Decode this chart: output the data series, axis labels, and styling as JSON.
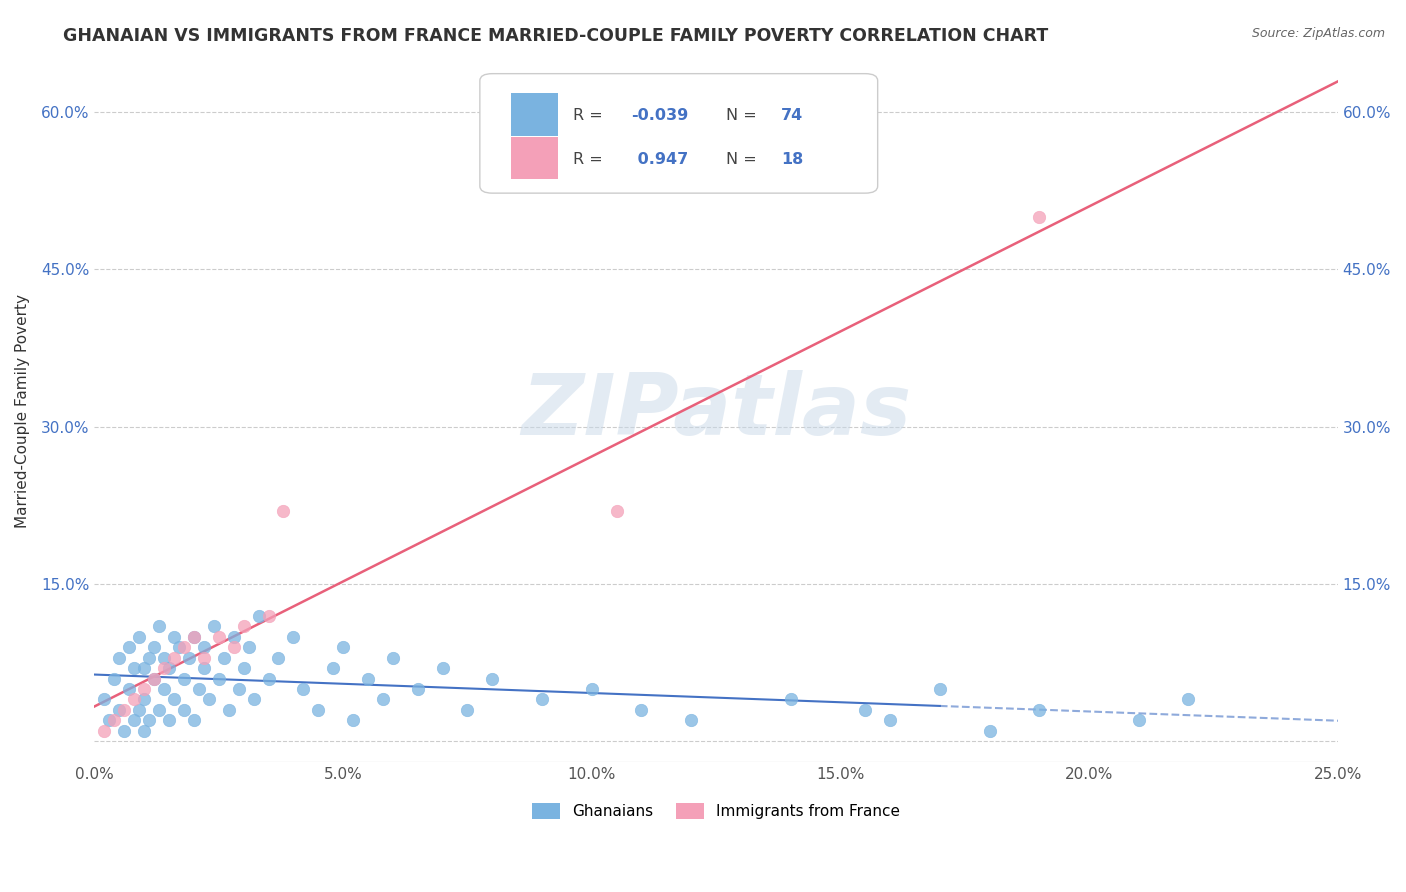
{
  "title": "GHANAIAN VS IMMIGRANTS FROM FRANCE MARRIED-COUPLE FAMILY POVERTY CORRELATION CHART",
  "source": "Source: ZipAtlas.com",
  "ylabel": "Married-Couple Family Poverty",
  "xlim": [
    0.0,
    0.25
  ],
  "ylim": [
    -0.02,
    0.65
  ],
  "xtick_labels": [
    "0.0%",
    "5.0%",
    "10.0%",
    "15.0%",
    "20.0%",
    "25.0%"
  ],
  "xtick_vals": [
    0.0,
    0.05,
    0.1,
    0.15,
    0.2,
    0.25
  ],
  "ytick_labels": [
    "",
    "15.0%",
    "30.0%",
    "45.0%",
    "60.0%"
  ],
  "ytick_vals": [
    0.0,
    0.15,
    0.3,
    0.45,
    0.6
  ],
  "ghanaian_color": "#7ab3e0",
  "france_color": "#f4a0b8",
  "ghanaian_line_color": "#4472c4",
  "france_line_color": "#e8607a",
  "legend_label1": "Ghanaians",
  "legend_label2": "Immigrants from France",
  "ghanaian_x": [
    0.002,
    0.003,
    0.004,
    0.005,
    0.005,
    0.006,
    0.007,
    0.007,
    0.008,
    0.008,
    0.009,
    0.009,
    0.01,
    0.01,
    0.01,
    0.011,
    0.011,
    0.012,
    0.012,
    0.013,
    0.013,
    0.014,
    0.014,
    0.015,
    0.015,
    0.016,
    0.016,
    0.017,
    0.018,
    0.018,
    0.019,
    0.02,
    0.02,
    0.021,
    0.022,
    0.022,
    0.023,
    0.024,
    0.025,
    0.026,
    0.027,
    0.028,
    0.029,
    0.03,
    0.031,
    0.032,
    0.033,
    0.035,
    0.037,
    0.04,
    0.042,
    0.045,
    0.048,
    0.05,
    0.052,
    0.055,
    0.058,
    0.06,
    0.065,
    0.07,
    0.075,
    0.08,
    0.09,
    0.1,
    0.11,
    0.12,
    0.14,
    0.155,
    0.16,
    0.17,
    0.18,
    0.19,
    0.21,
    0.22
  ],
  "ghanaian_y": [
    0.04,
    0.02,
    0.06,
    0.03,
    0.08,
    0.01,
    0.05,
    0.09,
    0.02,
    0.07,
    0.03,
    0.1,
    0.04,
    0.07,
    0.01,
    0.08,
    0.02,
    0.06,
    0.09,
    0.03,
    0.11,
    0.05,
    0.08,
    0.02,
    0.07,
    0.1,
    0.04,
    0.09,
    0.03,
    0.06,
    0.08,
    0.02,
    0.1,
    0.05,
    0.07,
    0.09,
    0.04,
    0.11,
    0.06,
    0.08,
    0.03,
    0.1,
    0.05,
    0.07,
    0.09,
    0.04,
    0.12,
    0.06,
    0.08,
    0.1,
    0.05,
    0.03,
    0.07,
    0.09,
    0.02,
    0.06,
    0.04,
    0.08,
    0.05,
    0.07,
    0.03,
    0.06,
    0.04,
    0.05,
    0.03,
    0.02,
    0.04,
    0.03,
    0.02,
    0.05,
    0.01,
    0.03,
    0.02,
    0.04
  ],
  "france_x": [
    0.002,
    0.004,
    0.006,
    0.008,
    0.01,
    0.012,
    0.014,
    0.016,
    0.018,
    0.02,
    0.022,
    0.025,
    0.028,
    0.03,
    0.035,
    0.038,
    0.105,
    0.19
  ],
  "france_y": [
    0.01,
    0.02,
    0.03,
    0.04,
    0.05,
    0.06,
    0.07,
    0.08,
    0.09,
    0.1,
    0.08,
    0.1,
    0.09,
    0.11,
    0.12,
    0.22,
    0.22,
    0.5
  ]
}
